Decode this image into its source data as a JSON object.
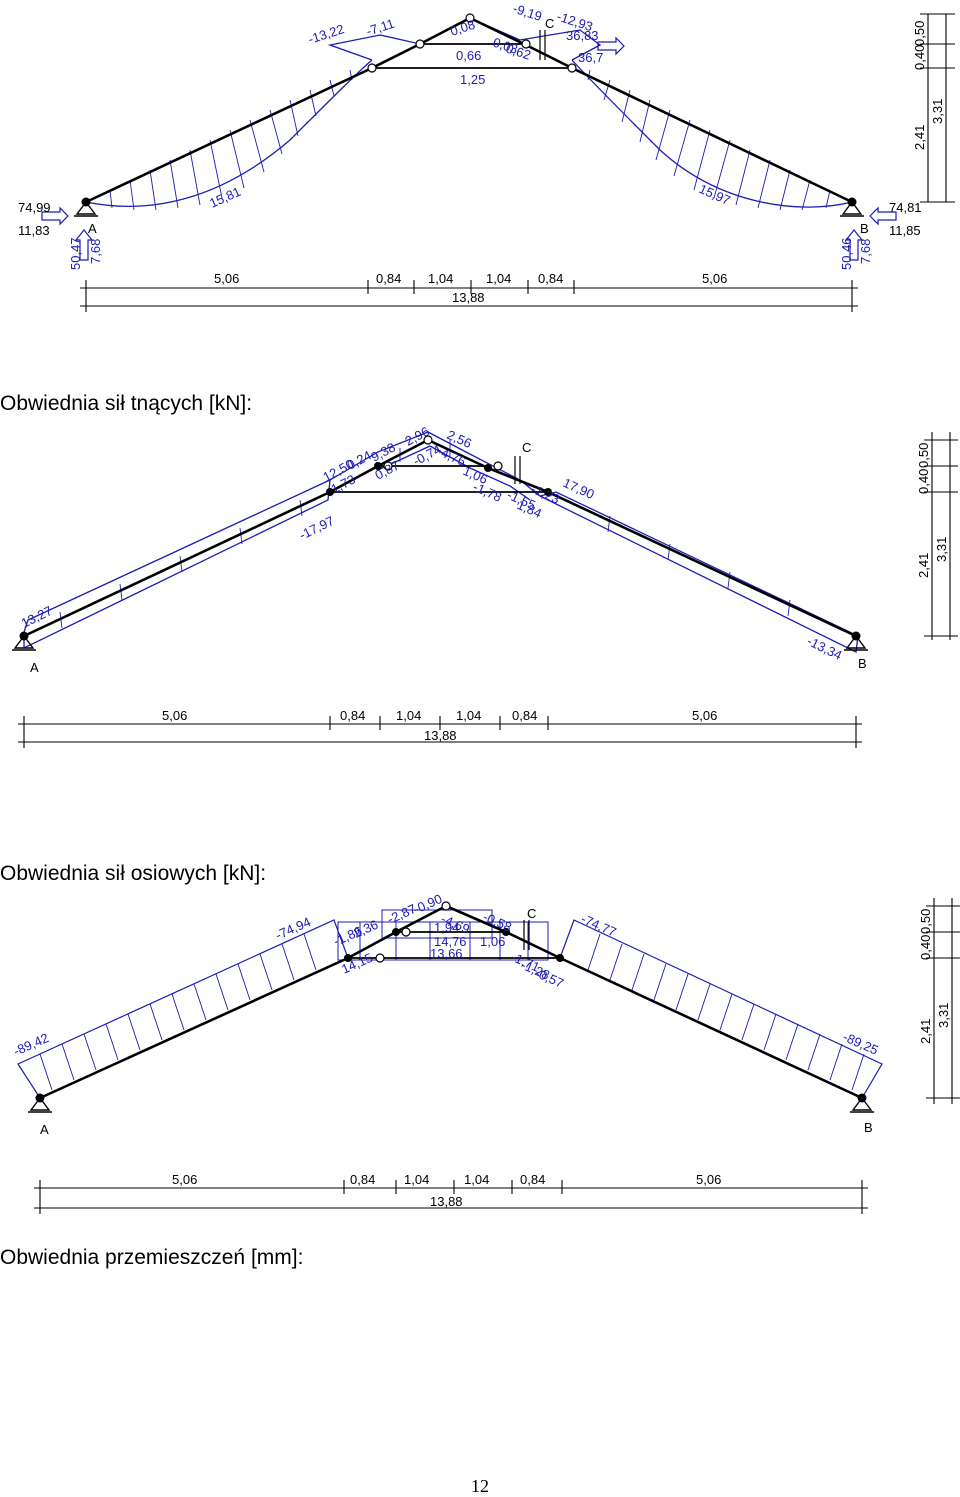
{
  "colors": {
    "structure": "#000000",
    "diagram": "#1c1cb4",
    "background": "#ffffff"
  },
  "captions": {
    "shear": "Obwiednia sił tnących [kN]:",
    "axial": "Obwiednia sił osiowych [kN]:",
    "displacement": "Obwiednia przemieszczeń [mm]:"
  },
  "page_number": "12",
  "dimensions": {
    "horizontal": [
      "5,06",
      "0,84",
      "1,04",
      "1,04",
      "0,84",
      "5,06"
    ],
    "total": "13,88",
    "vertical": [
      "0,40",
      "0,50",
      "2,41",
      "3,31"
    ]
  },
  "nodes": {
    "left_support": "A",
    "right_support": "B",
    "hinge": "C"
  },
  "moment_diagram": {
    "labels": [
      "-13,22",
      "-7,11",
      "0,08",
      "0,66",
      "1,25",
      "-9,19",
      "C",
      "-12,93",
      "36,83",
      "0,03",
      "0,62",
      "36,7",
      "15,81",
      "15,97"
    ],
    "reactions": {
      "left": {
        "horizontal": "74,99",
        "vertical_up": "11,83",
        "vertical_a": "50,47",
        "vertical_b": "7,68"
      },
      "right": {
        "horizontal": "74,81",
        "vertical_up": "11,85",
        "vertical_a": "50,46",
        "vertical_b": "7,68"
      }
    }
  },
  "shear_diagram": {
    "labels": [
      "12,50",
      "0,24",
      "9,38",
      "2,96",
      "2,56",
      "0,87",
      "-0,74",
      "4,76",
      "1,06",
      "-1,78",
      "1,73",
      "-17,97",
      "13,27",
      "-13,34",
      "17,90",
      "-1,55",
      "1,84",
      "-1,23"
    ]
  },
  "axial_diagram": {
    "labels": [
      "-74,94",
      "-1,86",
      "2,36",
      "-2,87",
      "-0,90",
      "-4,69",
      "-0,58",
      "1,06",
      "1,94",
      "14,76",
      "13,66",
      "14,15",
      "-1,71",
      "-1,28",
      "-0,57",
      "-74,77",
      "-89,42",
      "-89,25"
    ]
  }
}
